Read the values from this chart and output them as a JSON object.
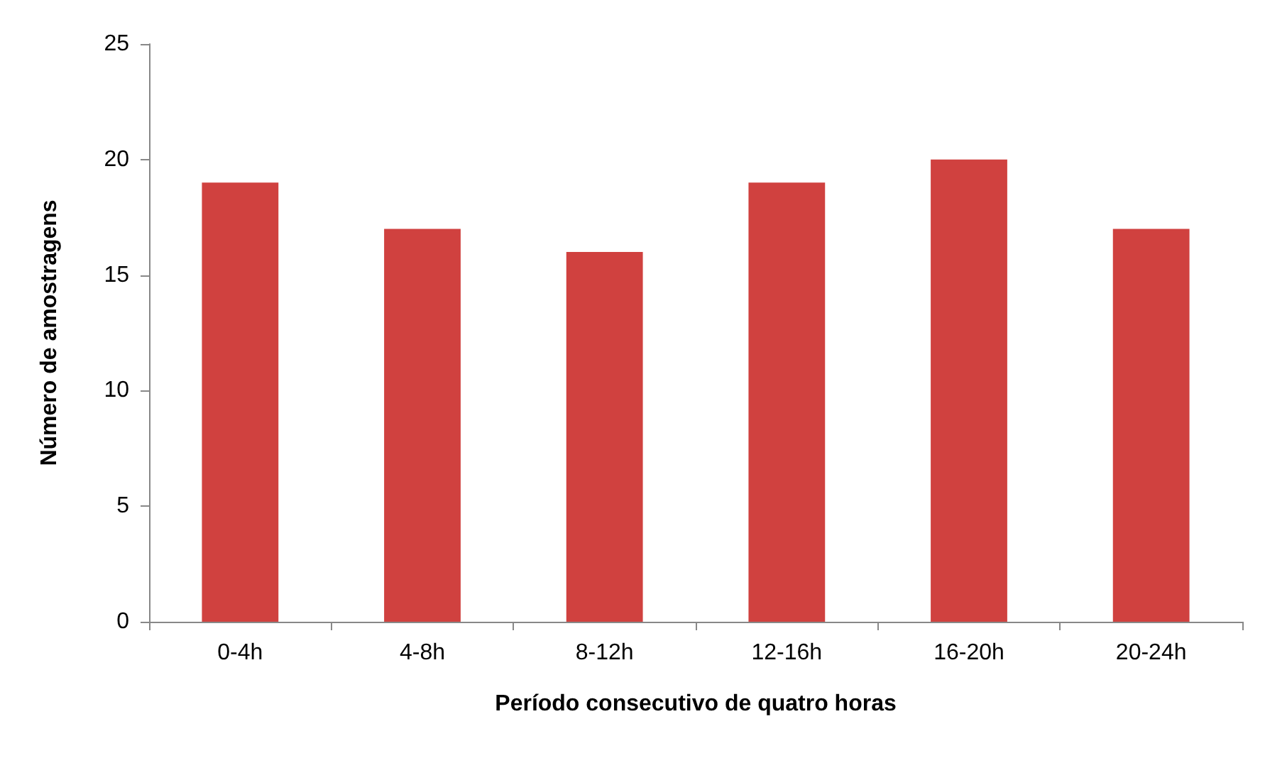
{
  "chart_data": {
    "type": "bar",
    "xlabel": "Período consecutivo de quatro horas",
    "ylabel": "Número de amostragens",
    "categories": [
      "0-4h",
      "4-8h",
      "8-12h",
      "12-16h",
      "16-20h",
      "20-24h"
    ],
    "values": [
      19,
      17,
      16,
      19,
      20,
      17
    ],
    "color": "#d0413f",
    "ylim": [
      0,
      25
    ],
    "yticks": [
      0,
      5,
      10,
      15,
      20,
      25
    ],
    "grid": false
  }
}
